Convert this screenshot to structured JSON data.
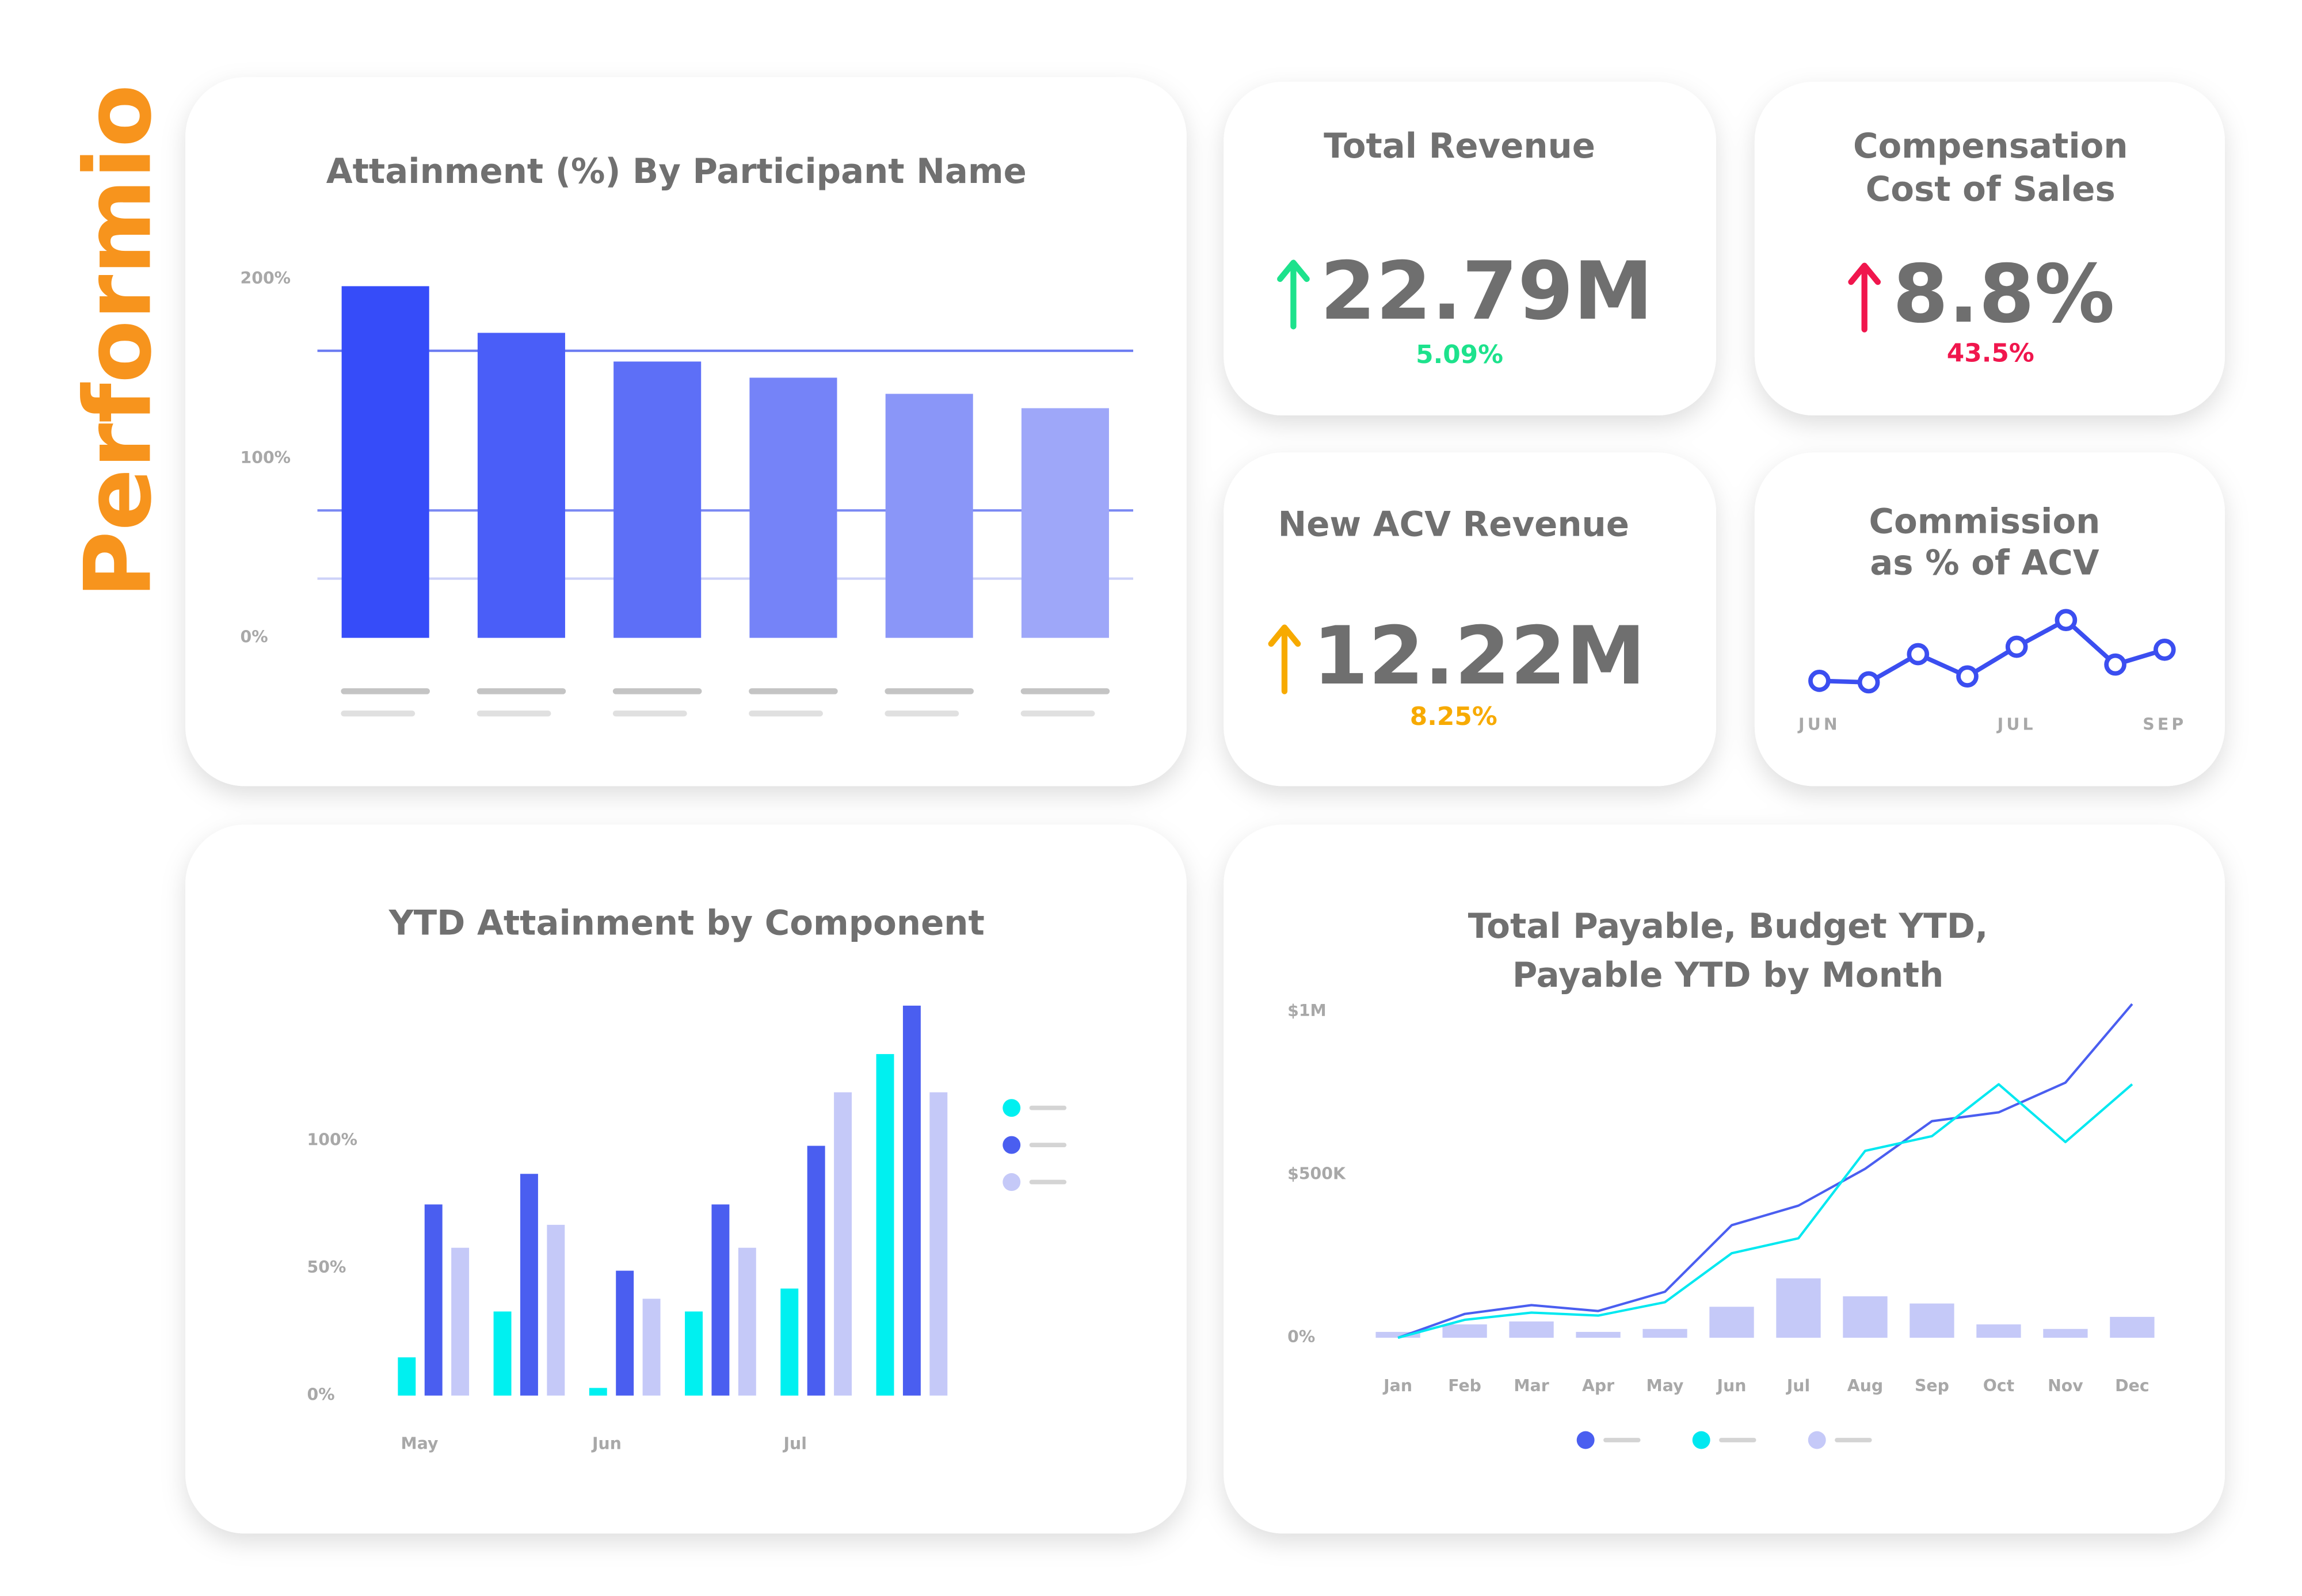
{
  "brand": "Performio",
  "kpis": [
    {
      "title": [
        "Total Revenue"
      ],
      "value": "22.79M",
      "change": "5.09%",
      "color": "#1de28c"
    },
    {
      "title": [
        "Compensation",
        "Cost of Sales"
      ],
      "value": "8.8%",
      "change": "43.5%",
      "color": "#f0164d"
    },
    {
      "title": [
        "New ACV Revenue"
      ],
      "value": "12.22M",
      "change": "8.25%",
      "color": "#f7aa00"
    }
  ],
  "chart_data": [
    {
      "type": "bar",
      "title": [
        "Attainment (%) By Participant Name"
      ],
      "categories": [
        null,
        null,
        null,
        null,
        null,
        null
      ],
      "values": [
        196,
        170,
        154,
        145,
        136,
        128
      ],
      "colors": [
        "#364cf9",
        "#4a5ef8",
        "#5d6ff7",
        "#7583f8",
        "#8a96f8",
        "#9ea7f9"
      ],
      "reference_lines": [
        {
          "value": 160,
          "color": "#6a7af2"
        },
        {
          "value": 71,
          "color": "#7b89f3"
        },
        {
          "value": 33,
          "color": "#cdd2f8"
        }
      ],
      "ylim": [
        0,
        200
      ],
      "yticks": [
        {
          "value": 0,
          "label": "0%"
        },
        {
          "value": 100,
          "label": "100%"
        },
        {
          "value": 200,
          "label": "200%"
        }
      ]
    },
    {
      "type": "line",
      "title": [
        "Commission",
        "as % of ACV"
      ],
      "categories": [
        "JUN",
        null,
        null,
        null,
        "JUL",
        null,
        null,
        "SEP"
      ],
      "values": [
        20,
        19,
        38,
        23,
        43,
        61,
        31,
        41
      ],
      "color": "#3b4ef0",
      "ylim": [
        0,
        80
      ]
    },
    {
      "type": "bar",
      "title": [
        "YTD Attainment by Component"
      ],
      "categories": [
        "May",
        null,
        "Jun",
        null,
        "Jul",
        null
      ],
      "series": [
        {
          "color": "#00f0f0",
          "values": [
            15,
            33,
            3,
            33,
            42,
            134
          ]
        },
        {
          "color": "#4a5ef0",
          "values": [
            75,
            87,
            49,
            75,
            98,
            153
          ]
        },
        {
          "color": "#c5c9f8",
          "values": [
            58,
            67,
            38,
            58,
            119,
            119
          ]
        }
      ],
      "ylim": [
        0,
        160
      ],
      "yticks": [
        {
          "value": 0,
          "label": "0%"
        },
        {
          "value": 50,
          "label": "50%"
        },
        {
          "value": 100,
          "label": "100%"
        }
      ],
      "legend": "right"
    },
    {
      "type": "line",
      "title": [
        "Total Payable, Budget YTD,",
        "Payable YTD by Month"
      ],
      "categories": [
        "Jan",
        "Feb",
        "Mar",
        "Apr",
        "May",
        "Jun",
        "Jul",
        "Aug",
        "Sep",
        "Oct",
        "Nov",
        "Dec"
      ],
      "series": [
        {
          "color": "#4a5ef0",
          "values": [
            0,
            73000,
            100000,
            82000,
            141000,
            345000,
            405000,
            518000,
            664000,
            691000,
            782000,
            1023000
          ]
        },
        {
          "color": "#00e8f0",
          "values": [
            0,
            55000,
            77000,
            68000,
            109000,
            259000,
            305000,
            573000,
            618000,
            777000,
            600000,
            777000
          ]
        },
        {
          "color": "#c5c9f8",
          "type": "bar",
          "values": [
            18000,
            41000,
            50000,
            18000,
            27000,
            95000,
            182000,
            127000,
            105000,
            41000,
            27000,
            64000
          ]
        }
      ],
      "ylim": [
        0,
        1050000
      ],
      "yticks": [
        {
          "value": 0,
          "label": "0%"
        },
        {
          "value": 500000,
          "label": "$500K"
        },
        {
          "value": 1000000,
          "label": "$1M"
        }
      ],
      "legend": "bottom"
    }
  ]
}
